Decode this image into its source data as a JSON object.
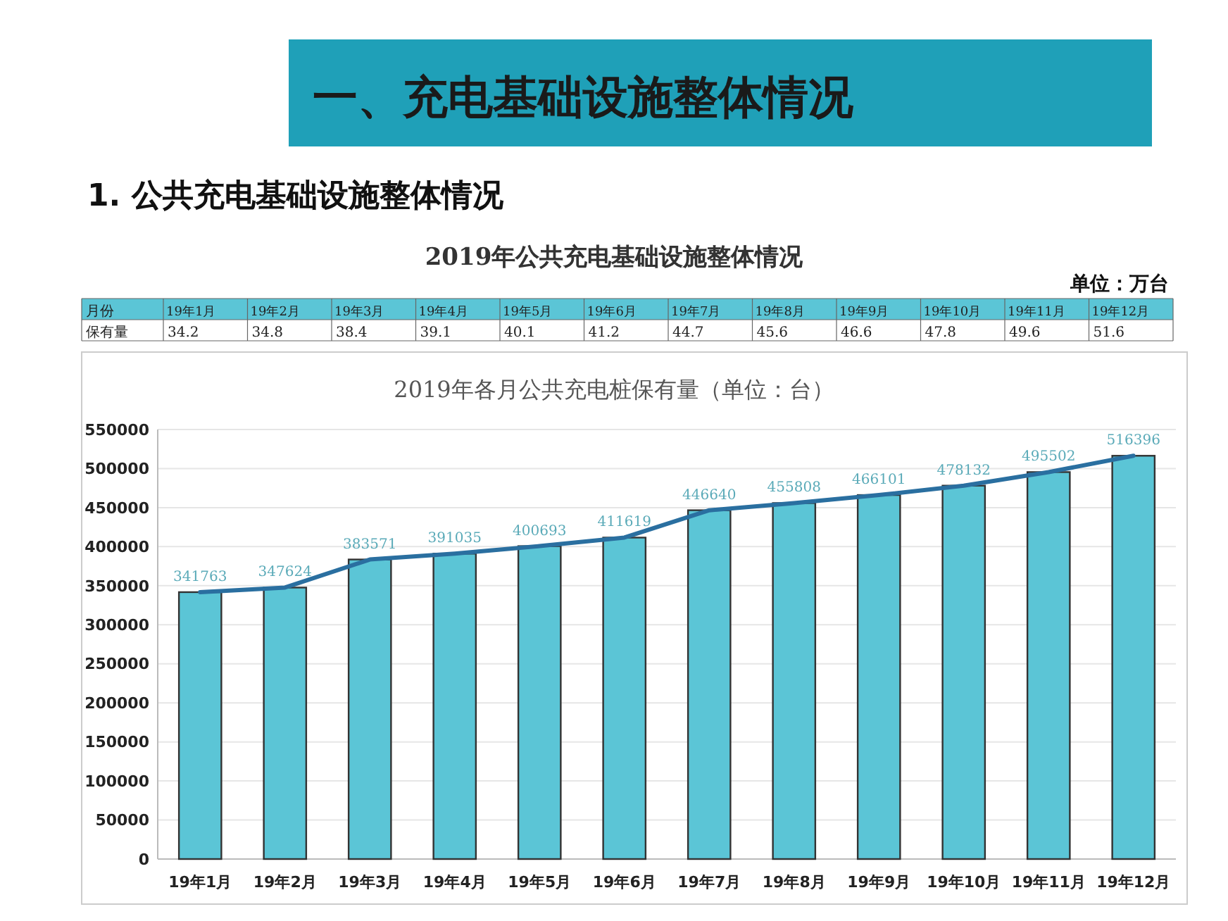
{
  "chart_data": [
    {
      "type": "other",
      "title": "2019年公共充电基础设施整体情况",
      "annotations": [
        "一、充电基础设施整体情况",
        "1. 公共充电基础设施整体情况",
        "单位：万台"
      ],
      "xlabel": "月份",
      "ylabel": "保有量",
      "categories": [
        "19年1月",
        "19年2月",
        "19年3月",
        "19年4月",
        "19年5月",
        "19年6月",
        "19年7月",
        "19年8月",
        "19年9月",
        "19年10月",
        "19年11月",
        "19年12月"
      ],
      "values": [
        34.2,
        34.8,
        38.4,
        39.1,
        40.1,
        41.2,
        44.7,
        45.6,
        46.6,
        47.8,
        49.6,
        51.6
      ],
      "data_labels": true
    },
    {
      "type": "bar",
      "title": "2019年各月公共充电桩保有量（单位：台）",
      "categories": [
        "19年1月",
        "19年2月",
        "19年3月",
        "19年4月",
        "19年5月",
        "19年6月",
        "19年7月",
        "19年8月",
        "19年9月",
        "19年10月",
        "19年11月",
        "19年12月"
      ],
      "series": [
        {
          "type": "bar",
          "color": "#5bc5d6",
          "values": [
            341763,
            347624,
            383571,
            391035,
            400693,
            411619,
            446640,
            455808,
            466101,
            478132,
            495502,
            516396
          ],
          "value_labels": [
            "341763",
            "347624",
            "383571",
            "391035",
            "400693",
            "411619",
            "446640",
            "455808",
            "466101",
            "478132",
            "495502",
            "516396"
          ]
        },
        {
          "type": "line",
          "color": "#2a6fa0",
          "values": [
            341763,
            347624,
            383571,
            391035,
            400693,
            411619,
            446640,
            455808,
            466101,
            478132,
            495502,
            516396
          ]
        }
      ],
      "ylim": [
        0,
        550000
      ],
      "yticks": [
        0,
        50000,
        100000,
        150000,
        200000,
        250000,
        300000,
        350000,
        400000,
        450000,
        500000,
        550000
      ],
      "grid": "y",
      "marker": "none",
      "line_style": "solid"
    }
  ]
}
